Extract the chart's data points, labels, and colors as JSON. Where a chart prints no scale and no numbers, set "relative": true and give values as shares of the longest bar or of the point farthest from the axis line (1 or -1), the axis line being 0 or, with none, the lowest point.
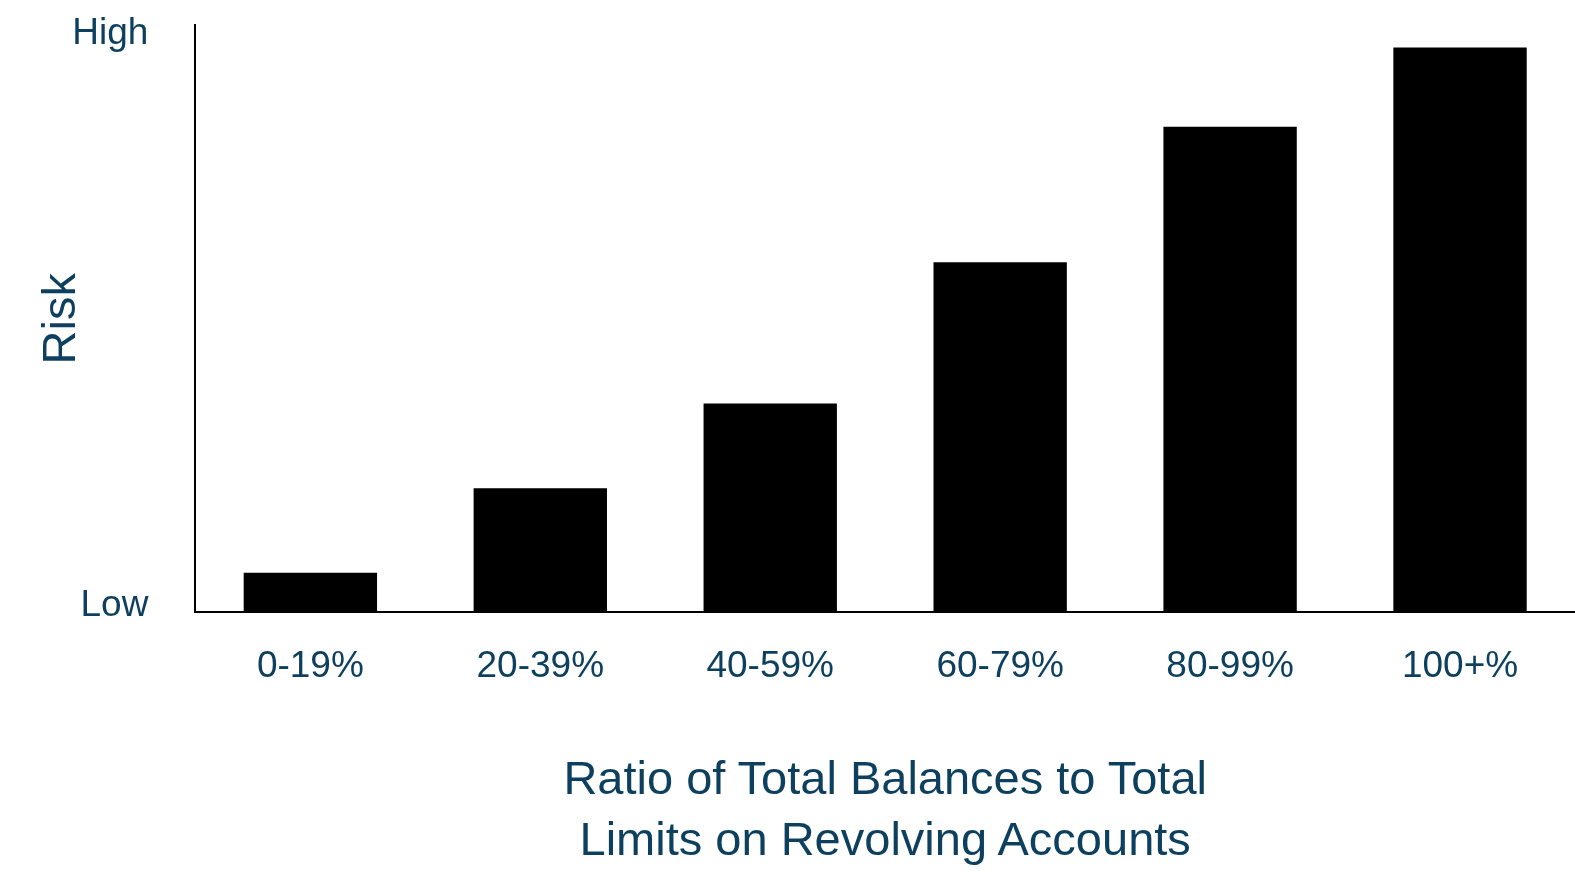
{
  "chart_data": {
    "type": "bar",
    "relative": true,
    "categories": [
      "0-19%",
      "20-39%",
      "40-59%",
      "60-79%",
      "80-99%",
      "100+%"
    ],
    "values": [
      0.07,
      0.22,
      0.37,
      0.62,
      0.86,
      1
    ],
    "color": "#000000",
    "ylabel": "Risk",
    "xlabel": "Ratio of Total Balances to Total Limits on Revolving Accounts",
    "annotations": [
      "High",
      "Low"
    ],
    "grid": false,
    "legend": false
  }
}
